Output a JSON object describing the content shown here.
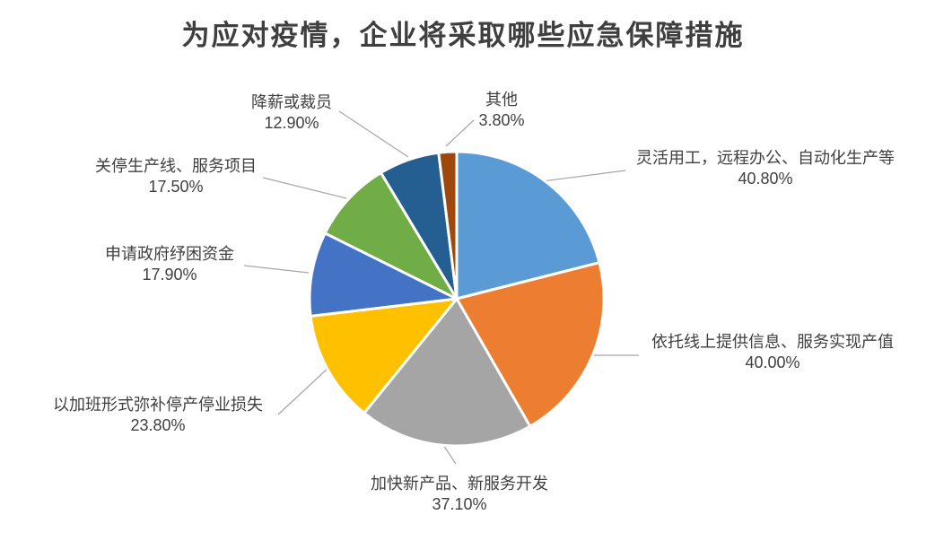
{
  "chart_data": {
    "type": "pie",
    "title": "为应对疫情，企业将采取哪些应急保障措施",
    "legend": "none",
    "label_style": "outside-with-leader-lines",
    "start_angle_deg": 0,
    "direction": "clockwise",
    "values_unit": "percent-of-respondents",
    "text_color": "#404040",
    "leader_line_color": "#a6a6a6",
    "slices": [
      {
        "label": "灵活用工，远程办公、自动化生产等",
        "value": 40.8,
        "pct": "40.80%",
        "color": "#5B9BD5"
      },
      {
        "label": "依托线上提供信息、服务实现产值",
        "value": 40.0,
        "pct": "40.00%",
        "color": "#ED7D31"
      },
      {
        "label": "加快新产品、新服务开发",
        "value": 37.1,
        "pct": "37.10%",
        "color": "#A5A5A5"
      },
      {
        "label": "以加班形式弥补停产停业损失",
        "value": 23.8,
        "pct": "23.80%",
        "color": "#FFC000"
      },
      {
        "label": "申请政府纾困资金",
        "value": 17.9,
        "pct": "17.90%",
        "color": "#4472C4"
      },
      {
        "label": "关停生产线、服务项目",
        "value": 17.5,
        "pct": "17.50%",
        "color": "#70AD47"
      },
      {
        "label": "降薪或裁员",
        "value": 12.9,
        "pct": "12.90%",
        "color": "#255E91"
      },
      {
        "label": "其他",
        "value": 3.8,
        "pct": "3.80%",
        "color": "#9E480E"
      }
    ]
  }
}
